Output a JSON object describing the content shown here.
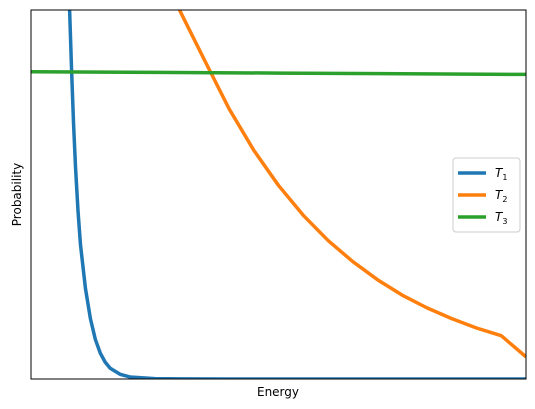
{
  "chart_data": {
    "type": "line",
    "title": "",
    "xlabel": "Energy",
    "ylabel": "Probability",
    "xticks": [],
    "yticks": [],
    "xlim": [
      0,
      1
    ],
    "ylim": [
      0,
      1.1
    ],
    "grid": false,
    "legend_position": "center-right",
    "series": [
      {
        "name": "T",
        "subscript": "1",
        "color": "#1f77b4",
        "x": [
          0.078,
          0.082,
          0.086,
          0.09,
          0.095,
          0.1,
          0.11,
          0.12,
          0.13,
          0.14,
          0.15,
          0.16,
          0.18,
          0.2,
          0.25,
          0.3,
          0.4,
          0.5,
          0.6,
          0.7,
          0.8,
          0.9,
          1.0
        ],
        "y": [
          1.1,
          0.92,
          0.76,
          0.63,
          0.5,
          0.4,
          0.27,
          0.18,
          0.118,
          0.077,
          0.05,
          0.032,
          0.014,
          0.006,
          0.001,
          0.0002,
          0,
          0,
          0,
          0,
          0,
          0,
          0
        ]
      },
      {
        "name": "T",
        "subscript": "2",
        "color": "#ff7f0e",
        "x": [
          0.3,
          0.35,
          0.4,
          0.45,
          0.5,
          0.55,
          0.6,
          0.65,
          0.7,
          0.75,
          0.8,
          0.85,
          0.9,
          0.95,
          1.0
        ],
        "y": [
          1.1,
          0.952,
          0.806,
          0.682,
          0.577,
          0.488,
          0.413,
          0.35,
          0.296,
          0.25,
          0.212,
          0.18,
          0.152,
          0.129,
          0.066
        ]
      },
      {
        "name": "T",
        "subscript": "3",
        "color": "#2ca02c",
        "x": [
          0,
          0.25,
          0.5,
          0.75,
          1.0
        ],
        "y": [
          0.916,
          0.914,
          0.912,
          0.91,
          0.908
        ]
      }
    ]
  }
}
